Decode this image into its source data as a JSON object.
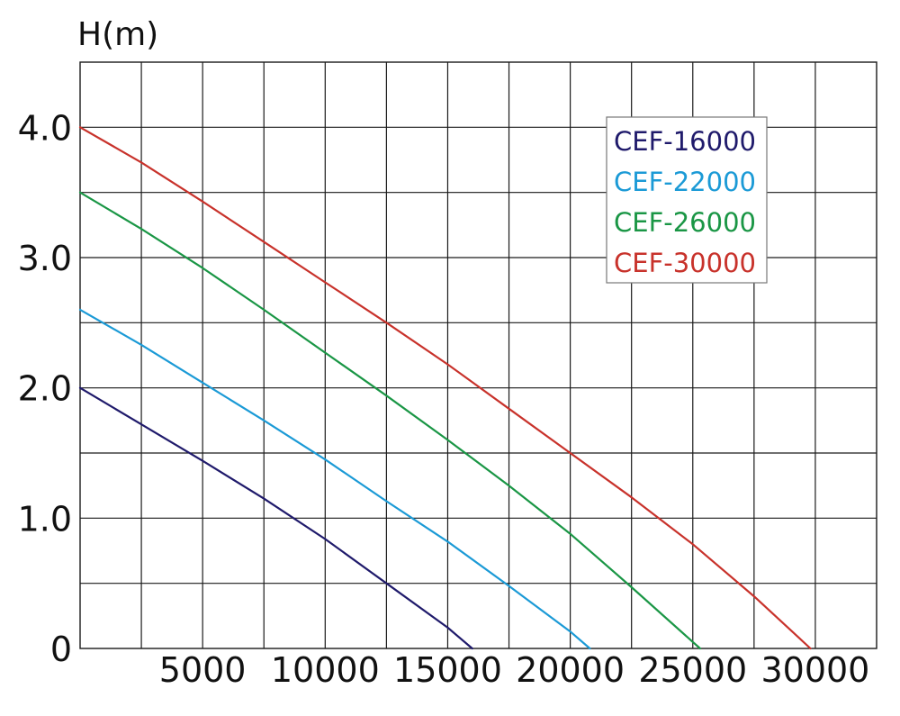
{
  "chart_data": {
    "type": "line",
    "title": "",
    "ylabel": "H(m)",
    "xlabel": "",
    "xlim": [
      0,
      32500
    ],
    "ylim": [
      0,
      4.5
    ],
    "x_grid_step": 2500,
    "y_grid_step": 0.5,
    "x_ticks": [
      {
        "value": 0,
        "label": ""
      },
      {
        "value": 5000,
        "label": "5000"
      },
      {
        "value": 10000,
        "label": "10000"
      },
      {
        "value": 15000,
        "label": "15000"
      },
      {
        "value": 20000,
        "label": "20000"
      },
      {
        "value": 25000,
        "label": "25000"
      },
      {
        "value": 30000,
        "label": "30000"
      }
    ],
    "y_ticks": [
      {
        "value": 0,
        "label": "0"
      },
      {
        "value": 1.0,
        "label": "1.0"
      },
      {
        "value": 2.0,
        "label": "2.0"
      },
      {
        "value": 3.0,
        "label": "3.0"
      },
      {
        "value": 4.0,
        "label": "4.0"
      }
    ],
    "grid": true,
    "legend_position": "top-right",
    "series": [
      {
        "name": "CEF-16000",
        "color": "#1f1a6b",
        "points": [
          [
            0,
            2.0
          ],
          [
            2500,
            1.72
          ],
          [
            5000,
            1.44
          ],
          [
            7500,
            1.15
          ],
          [
            10000,
            0.84
          ],
          [
            12500,
            0.5
          ],
          [
            15000,
            0.16
          ],
          [
            16000,
            0.0
          ]
        ]
      },
      {
        "name": "CEF-22000",
        "color": "#1b9ad6",
        "points": [
          [
            0,
            2.6
          ],
          [
            2500,
            2.33
          ],
          [
            5000,
            2.04
          ],
          [
            7500,
            1.75
          ],
          [
            10000,
            1.45
          ],
          [
            12500,
            1.13
          ],
          [
            15000,
            0.82
          ],
          [
            17500,
            0.48
          ],
          [
            20000,
            0.13
          ],
          [
            20800,
            0.0
          ]
        ]
      },
      {
        "name": "CEF-26000",
        "color": "#1a9645",
        "points": [
          [
            0,
            3.5
          ],
          [
            2500,
            3.22
          ],
          [
            5000,
            2.92
          ],
          [
            7500,
            2.6
          ],
          [
            10000,
            2.27
          ],
          [
            12500,
            1.94
          ],
          [
            15000,
            1.6
          ],
          [
            17500,
            1.25
          ],
          [
            20000,
            0.88
          ],
          [
            22500,
            0.47
          ],
          [
            25000,
            0.05
          ],
          [
            25300,
            0.0
          ]
        ]
      },
      {
        "name": "CEF-30000",
        "color": "#c8322b",
        "points": [
          [
            0,
            4.0
          ],
          [
            2500,
            3.73
          ],
          [
            5000,
            3.43
          ],
          [
            7500,
            3.12
          ],
          [
            10000,
            2.81
          ],
          [
            12500,
            2.5
          ],
          [
            15000,
            2.18
          ],
          [
            17500,
            1.84
          ],
          [
            20000,
            1.5
          ],
          [
            22500,
            1.16
          ],
          [
            25000,
            0.8
          ],
          [
            27500,
            0.4
          ],
          [
            29800,
            0.0
          ]
        ]
      }
    ]
  }
}
